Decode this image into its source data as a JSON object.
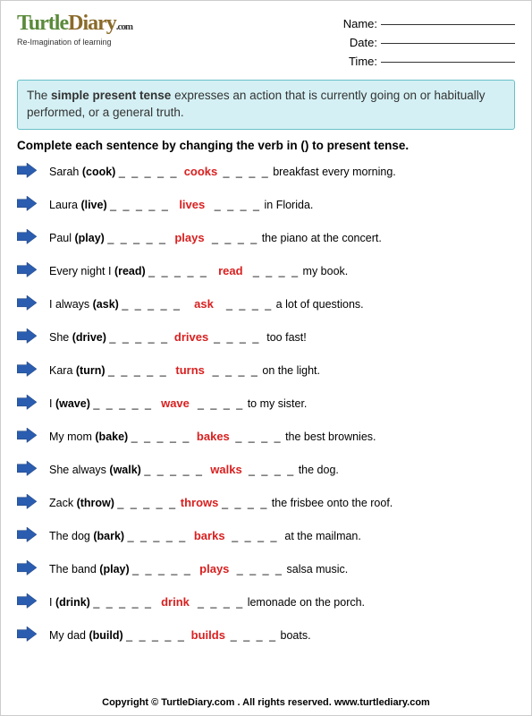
{
  "logo": {
    "part1": "Turtle",
    "part2": "Diary",
    "dotcom": ".com",
    "tagline": "Re-Imagination of learning"
  },
  "info": {
    "name_label": "Name:",
    "date_label": "Date:",
    "time_label": "Time:"
  },
  "intro": {
    "pre": "The ",
    "bold": "simple present tense",
    "post": " expresses an action that is currently going on or habitually performed, or a general truth."
  },
  "instruction": "Complete each sentence by changing the verb in () to present tense.",
  "blank_left": "_ _ _ _ _",
  "blank_right": "_ _ _ _",
  "items": [
    {
      "pre": "Sarah ",
      "verb": "(cook)",
      "answer": "cooks",
      "post": " breakfast every morning."
    },
    {
      "pre": "Laura ",
      "verb": "(live)",
      "answer": "lives",
      "post": " in Florida."
    },
    {
      "pre": "Paul ",
      "verb": "(play)",
      "answer": "plays",
      "post": " the piano at the concert."
    },
    {
      "pre": "Every night I ",
      "verb": "(read)",
      "answer": "read",
      "post": " my book."
    },
    {
      "pre": "I always ",
      "verb": "(ask)",
      "answer": "ask",
      "post": " a lot of questions."
    },
    {
      "pre": "She ",
      "verb": "(drive)",
      "answer": "drives",
      "post": "  too fast!"
    },
    {
      "pre": "Kara ",
      "verb": "(turn)",
      "answer": "turns",
      "post": " on the light."
    },
    {
      "pre": "I ",
      "verb": "(wave)",
      "answer": "wave",
      "post": " to my sister."
    },
    {
      "pre": "My mom ",
      "verb": "(bake)",
      "answer": "bakes",
      "post": " the best brownies."
    },
    {
      "pre": "She always ",
      "verb": "(walk)",
      "answer": "walks",
      "post": " the dog."
    },
    {
      "pre": "Zack ",
      "verb": "(throw)",
      "answer": "throws",
      "post": " the frisbee onto the roof."
    },
    {
      "pre": "The dog ",
      "verb": "(bark)",
      "answer": "barks",
      "post": "  at the mailman."
    },
    {
      "pre": "The band ",
      "verb": "(play)",
      "answer": "plays",
      "post": " salsa music."
    },
    {
      "pre": "I ",
      "verb": "(drink)",
      "answer": "drink",
      "post": " lemonade on the porch."
    },
    {
      "pre": "My dad ",
      "verb": "(build)",
      "answer": "builds",
      "post": " boats."
    }
  ],
  "footer": "Copyright © TurtleDiary.com . All rights reserved. www.turtlediary.com",
  "colors": {
    "arrow_fill": "#2a5db0",
    "arrow_stroke": "#1a3a70",
    "answer": "#d92020",
    "intro_bg": "#d4f0f4",
    "intro_border": "#6ac0c8"
  }
}
